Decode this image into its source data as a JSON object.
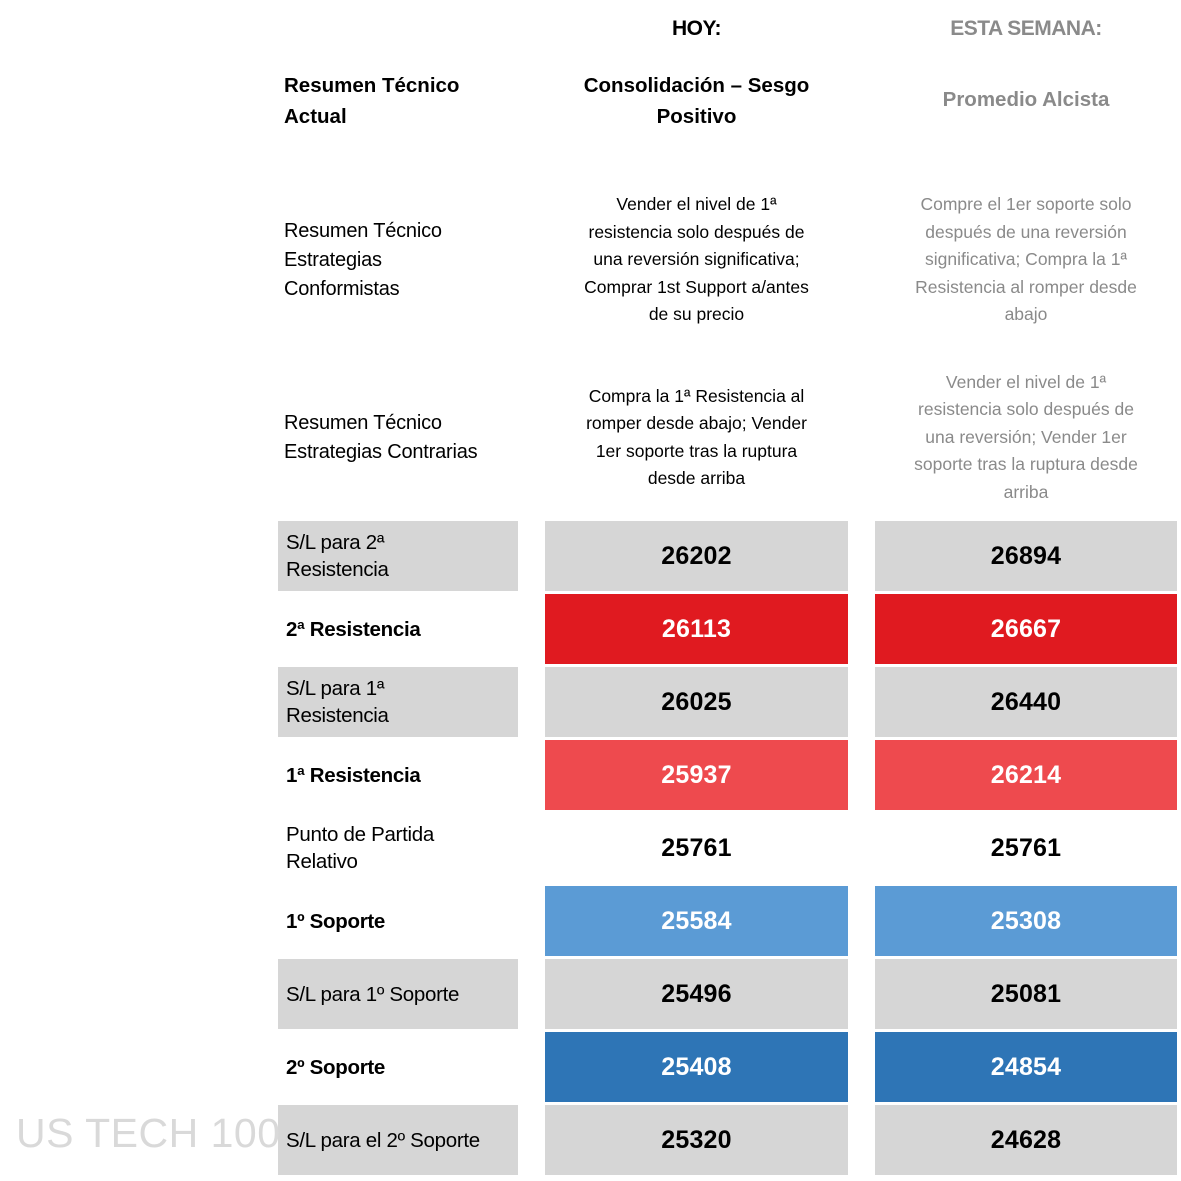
{
  "watermark": "US TECH 100",
  "colors": {
    "cell_gray": "#d6d6d6",
    "red_strong": "#e01a20",
    "red_light": "#ee4a4e",
    "blue_light": "#5b9bd5",
    "blue_dark": "#2e75b6",
    "gray_text": "#8a8a8a",
    "watermark_gray": "#d9d9d9"
  },
  "headers": {
    "hoy": "HOY:",
    "semana": "ESTA SEMANA:"
  },
  "summary": {
    "label": "Resumen Técnico\nActual",
    "hoy": "Consolidación – Sesgo\nPositivo",
    "semana": "Promedio Alcista"
  },
  "strategies": [
    {
      "label": "Resumen Técnico\nEstrategias\nConformistas",
      "hoy": "Vender el nivel de 1ª\nresistencia solo después de\nuna reversión significativa;\nComprar 1st Support a/antes\nde su precio",
      "semana": "Compre el 1er soporte solo\ndespués de una reversión\nsignificativa; Compra la 1ª\nResistencia al romper desde\nabajo"
    },
    {
      "label": "Resumen Técnico\nEstrategias Contrarias",
      "hoy": "Compra la 1ª Resistencia al\nromper desde abajo; Vender\n1er soporte tras la ruptura\ndesde arriba",
      "semana": "Vender el nivel de 1ª\nresistencia solo después de\nuna reversión; Vender 1er\nsoporte tras la ruptura desde\narriba"
    }
  ],
  "levels": [
    {
      "label": "S/L para 2ª\nResistencia",
      "hoy": "26202",
      "semana": "26894"
    },
    {
      "label": "2ª Resistencia",
      "hoy": "26113",
      "semana": "26667"
    },
    {
      "label": "S/L para 1ª\nResistencia",
      "hoy": "26025",
      "semana": "26440"
    },
    {
      "label": "1ª Resistencia",
      "hoy": "25937",
      "semana": "26214"
    },
    {
      "label": "Punto de Partida\nRelativo",
      "hoy": "25761",
      "semana": "25761"
    },
    {
      "label": "1º Soporte",
      "hoy": "25584",
      "semana": "25308"
    },
    {
      "label": "S/L para 1º Soporte",
      "hoy": "25496",
      "semana": "25081"
    },
    {
      "label": "2º Soporte",
      "hoy": "25408",
      "semana": "24854"
    },
    {
      "label": "S/L para el 2º Soporte",
      "hoy": "25320",
      "semana": "24628"
    }
  ]
}
